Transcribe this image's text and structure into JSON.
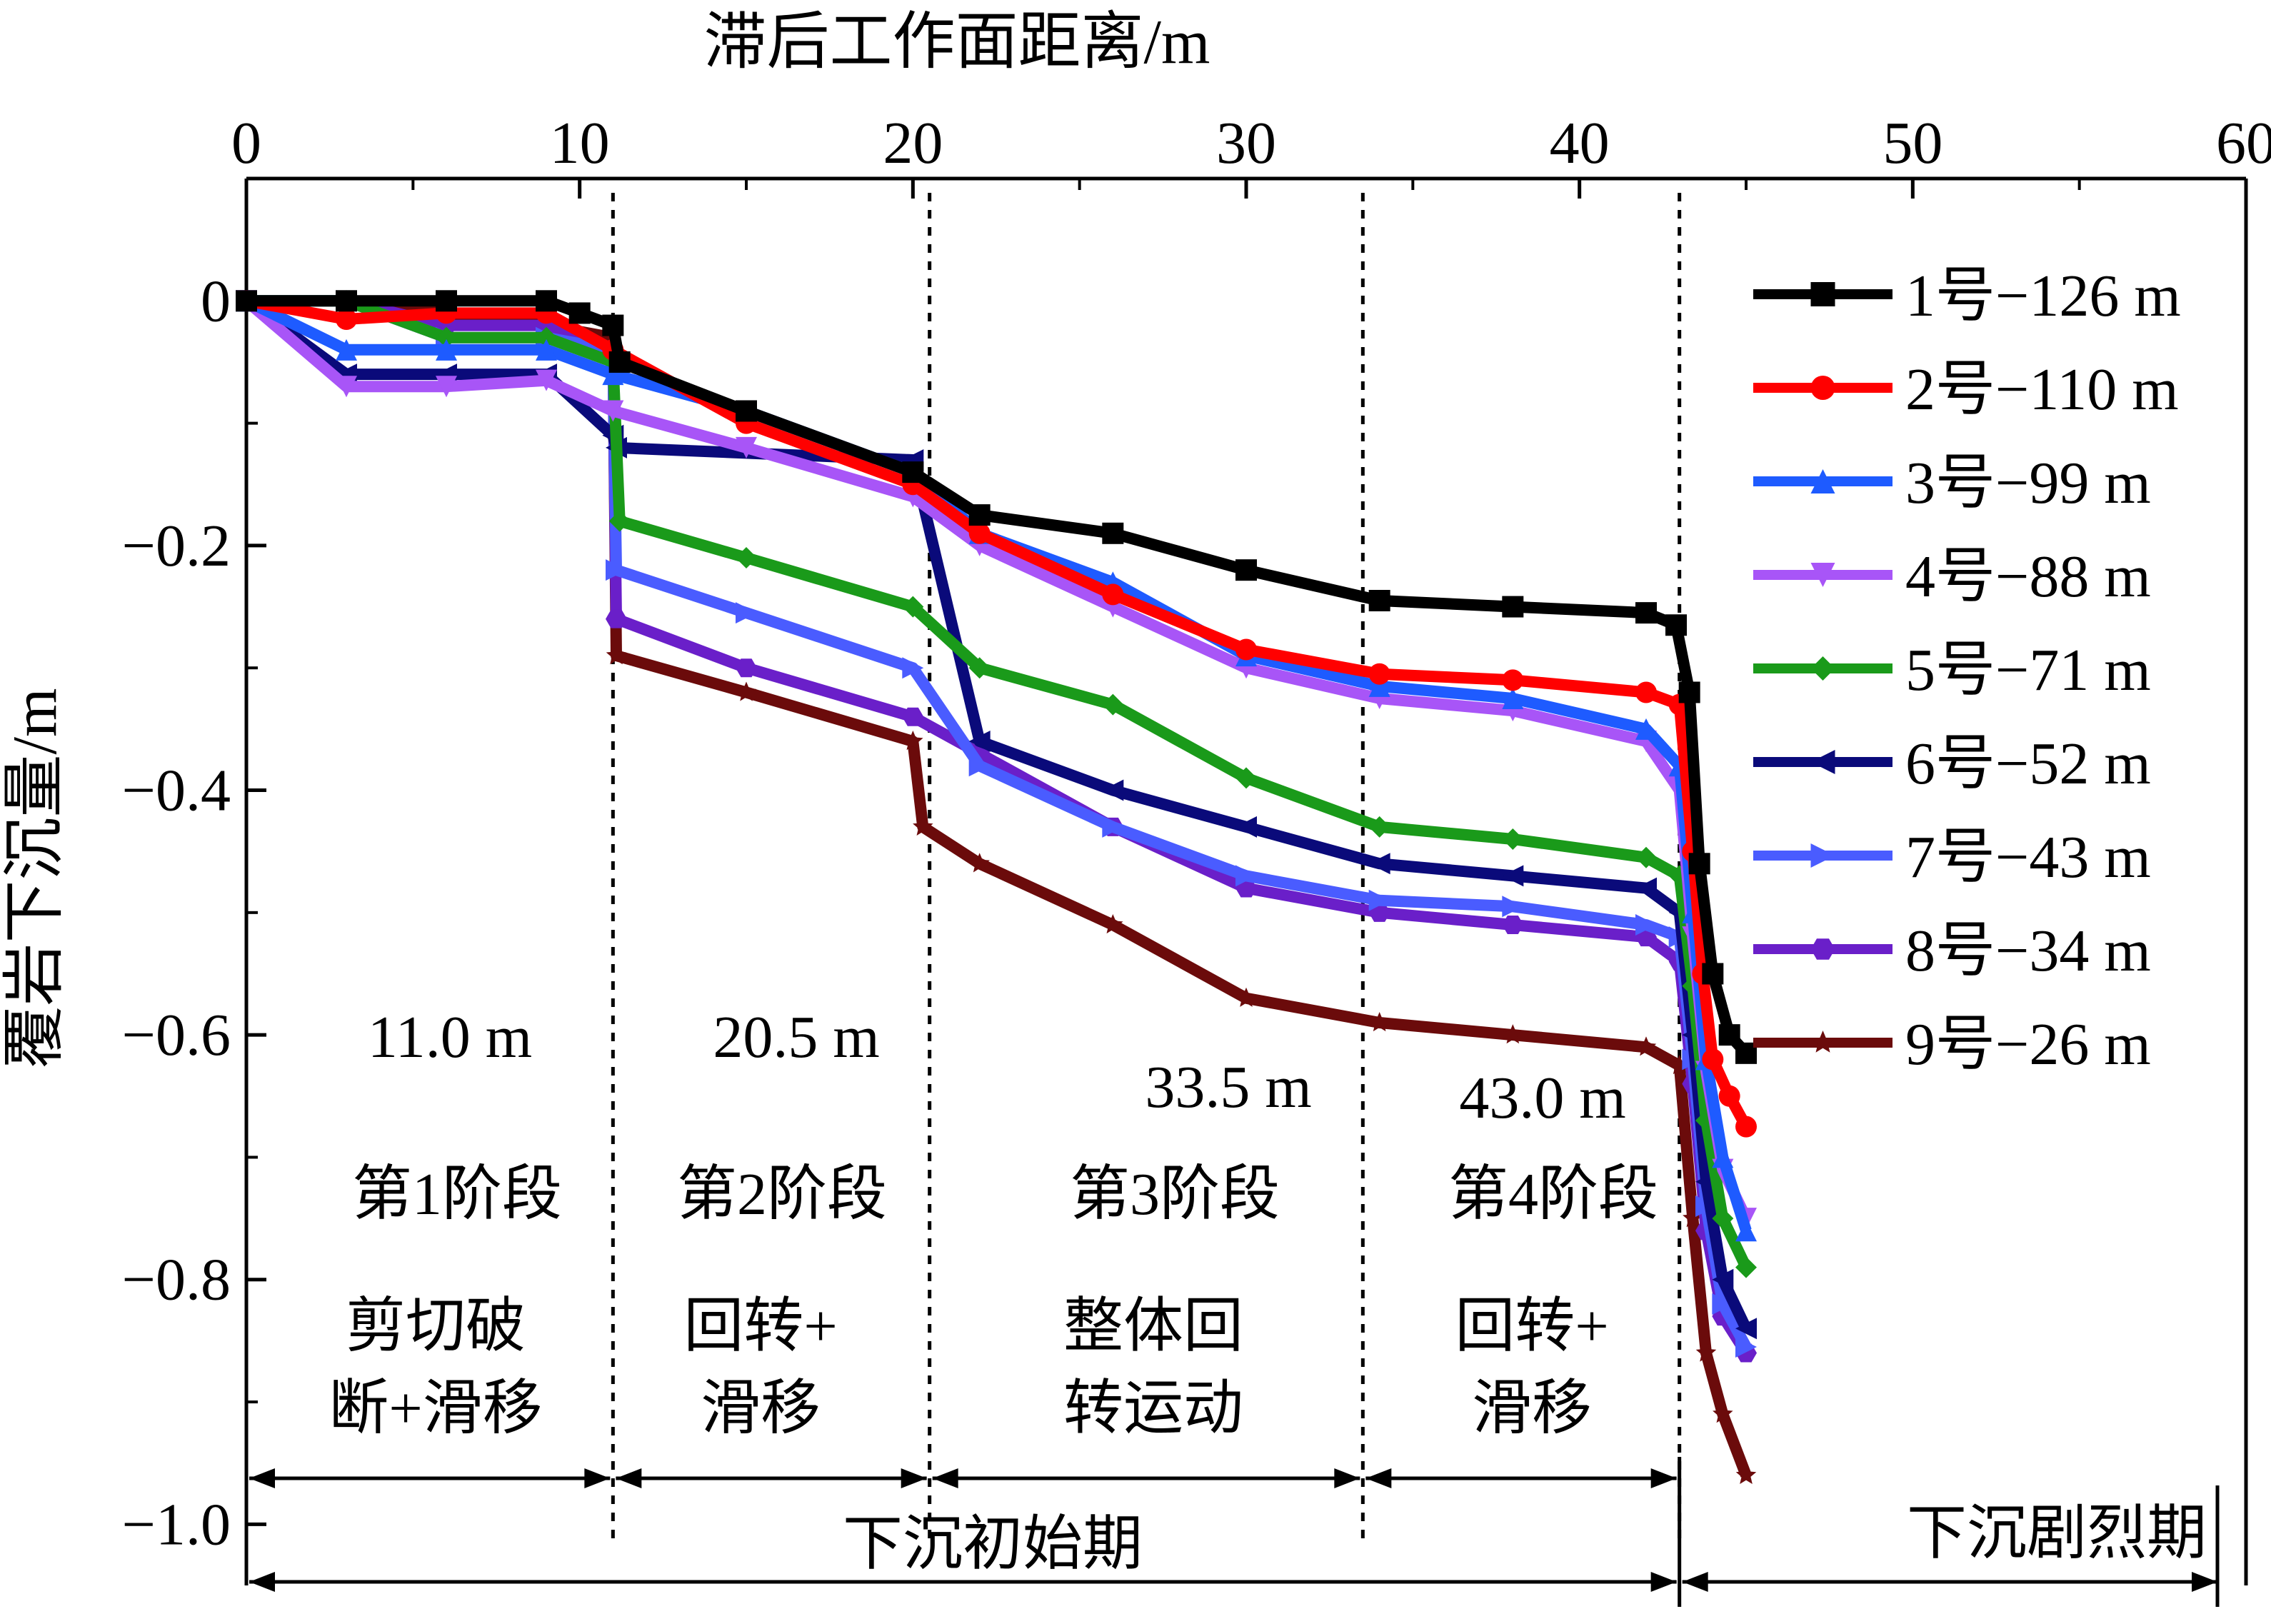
{
  "chart_data": {
    "type": "line",
    "title": "",
    "xlabel": "滞后工作面距离/m",
    "ylabel": "覆岩下沉量/m",
    "xlim": [
      0,
      60
    ],
    "ylim": [
      -1.05,
      0.1
    ],
    "xticks": [
      "0",
      "10",
      "20",
      "30",
      "40",
      "50",
      "60"
    ],
    "yticks": [
      "0",
      "−0.2",
      "−0.4",
      "−0.6",
      "−0.8",
      "−1.0"
    ],
    "legend_position": "top-right",
    "stage_boundaries": [
      11.0,
      20.5,
      33.5,
      43.0
    ],
    "boundary_labels": [
      "11.0 m",
      "20.5 m",
      "33.5 m",
      "43.0 m"
    ],
    "stages": [
      {
        "name": "第1阶段",
        "mode": [
          "剪切破",
          "断+滑移"
        ]
      },
      {
        "name": "第2阶段",
        "mode": [
          "回转+",
          "滑移"
        ]
      },
      {
        "name": "第3阶段",
        "mode": [
          "整体回",
          "转运动"
        ]
      },
      {
        "name": "第4阶段",
        "mode": [
          "回转+",
          "滑移"
        ]
      }
    ],
    "periods": [
      "下沉初始期",
      "下沉剧烈期"
    ],
    "series": [
      {
        "name": "1号−126 m",
        "color": "#000000",
        "marker": "square",
        "points": [
          [
            0,
            0
          ],
          [
            3,
            0
          ],
          [
            6,
            0
          ],
          [
            9,
            0
          ],
          [
            10,
            -0.01
          ],
          [
            11,
            -0.02
          ],
          [
            11.2,
            -0.05
          ],
          [
            15,
            -0.09
          ],
          [
            20,
            -0.14
          ],
          [
            22,
            -0.175
          ],
          [
            26,
            -0.19
          ],
          [
            30,
            -0.22
          ],
          [
            34,
            -0.245
          ],
          [
            38,
            -0.25
          ],
          [
            42,
            -0.255
          ],
          [
            42.9,
            -0.265
          ],
          [
            43.3,
            -0.32
          ],
          [
            43.6,
            -0.46
          ],
          [
            44,
            -0.55
          ],
          [
            44.5,
            -0.6
          ],
          [
            45,
            -0.615
          ]
        ]
      },
      {
        "name": "2号−110 m",
        "color": "#ff0000",
        "marker": "circle",
        "points": [
          [
            0,
            0
          ],
          [
            3,
            -0.015
          ],
          [
            6,
            -0.01
          ],
          [
            9,
            -0.01
          ],
          [
            11,
            -0.04
          ],
          [
            15,
            -0.1
          ],
          [
            20,
            -0.15
          ],
          [
            22,
            -0.19
          ],
          [
            26,
            -0.24
          ],
          [
            30,
            -0.285
          ],
          [
            34,
            -0.305
          ],
          [
            38,
            -0.31
          ],
          [
            42,
            -0.32
          ],
          [
            43,
            -0.33
          ],
          [
            43.4,
            -0.45
          ],
          [
            43.7,
            -0.55
          ],
          [
            44,
            -0.62
          ],
          [
            44.5,
            -0.65
          ],
          [
            45,
            -0.675
          ]
        ]
      },
      {
        "name": "3号−99 m",
        "color": "#1e5bff",
        "marker": "triangle-up",
        "points": [
          [
            0,
            0
          ],
          [
            3,
            -0.04
          ],
          [
            6,
            -0.04
          ],
          [
            9,
            -0.04
          ],
          [
            11,
            -0.06
          ],
          [
            15,
            -0.09
          ],
          [
            20,
            -0.14
          ],
          [
            22,
            -0.19
          ],
          [
            26,
            -0.23
          ],
          [
            30,
            -0.29
          ],
          [
            34,
            -0.315
          ],
          [
            38,
            -0.325
          ],
          [
            42,
            -0.35
          ],
          [
            43,
            -0.38
          ],
          [
            43.4,
            -0.5
          ],
          [
            43.8,
            -0.62
          ],
          [
            44.3,
            -0.7
          ],
          [
            45,
            -0.76
          ]
        ]
      },
      {
        "name": "4号−88 m",
        "color": "#a855f7",
        "marker": "triangle-down",
        "points": [
          [
            0,
            0
          ],
          [
            3,
            -0.07
          ],
          [
            6,
            -0.07
          ],
          [
            9,
            -0.065
          ],
          [
            11,
            -0.09
          ],
          [
            15,
            -0.12
          ],
          [
            20,
            -0.16
          ],
          [
            22,
            -0.2
          ],
          [
            26,
            -0.25
          ],
          [
            30,
            -0.3
          ],
          [
            34,
            -0.325
          ],
          [
            38,
            -0.335
          ],
          [
            42,
            -0.36
          ],
          [
            43,
            -0.4
          ],
          [
            43.4,
            -0.52
          ],
          [
            43.8,
            -0.63
          ],
          [
            44.3,
            -0.71
          ],
          [
            45,
            -0.75
          ]
        ]
      },
      {
        "name": "5号−71 m",
        "color": "#1a9a1a",
        "marker": "diamond",
        "points": [
          [
            0,
            0
          ],
          [
            3,
            0
          ],
          [
            6,
            -0.03
          ],
          [
            9,
            -0.03
          ],
          [
            11,
            -0.05
          ],
          [
            11.2,
            -0.18
          ],
          [
            15,
            -0.21
          ],
          [
            20,
            -0.25
          ],
          [
            22,
            -0.3
          ],
          [
            26,
            -0.33
          ],
          [
            30,
            -0.39
          ],
          [
            34,
            -0.43
          ],
          [
            38,
            -0.44
          ],
          [
            42,
            -0.455
          ],
          [
            43,
            -0.47
          ],
          [
            43.4,
            -0.56
          ],
          [
            43.8,
            -0.67
          ],
          [
            44.3,
            -0.75
          ],
          [
            45,
            -0.79
          ]
        ]
      },
      {
        "name": "6号−52 m",
        "color": "#0a0a7a",
        "marker": "triangle-left",
        "points": [
          [
            0,
            0
          ],
          [
            3,
            -0.06
          ],
          [
            6,
            -0.06
          ],
          [
            9,
            -0.06
          ],
          [
            11,
            -0.11
          ],
          [
            11.1,
            -0.12
          ],
          [
            20,
            -0.13
          ],
          [
            22,
            -0.36
          ],
          [
            26,
            -0.4
          ],
          [
            30,
            -0.43
          ],
          [
            34,
            -0.46
          ],
          [
            38,
            -0.47
          ],
          [
            42,
            -0.48
          ],
          [
            43,
            -0.5
          ],
          [
            43.4,
            -0.6
          ],
          [
            43.8,
            -0.72
          ],
          [
            44.3,
            -0.8
          ],
          [
            45,
            -0.84
          ]
        ]
      },
      {
        "name": "7号−43 m",
        "color": "#4a5cff",
        "marker": "triangle-right",
        "points": [
          [
            0,
            0
          ],
          [
            3,
            0
          ],
          [
            6,
            -0.03
          ],
          [
            9,
            -0.03
          ],
          [
            11,
            -0.04
          ],
          [
            11.1,
            -0.22
          ],
          [
            15,
            -0.255
          ],
          [
            20,
            -0.3
          ],
          [
            22,
            -0.38
          ],
          [
            26,
            -0.43
          ],
          [
            30,
            -0.47
          ],
          [
            34,
            -0.49
          ],
          [
            38,
            -0.495
          ],
          [
            42,
            -0.51
          ],
          [
            43,
            -0.52
          ],
          [
            43.4,
            -0.62
          ],
          [
            43.8,
            -0.74
          ],
          [
            44.3,
            -0.82
          ],
          [
            45,
            -0.855
          ]
        ]
      },
      {
        "name": "8号−34 m",
        "color": "#6a1fc9",
        "marker": "hexagon",
        "points": [
          [
            0,
            0
          ],
          [
            3,
            0
          ],
          [
            6,
            -0.02
          ],
          [
            9,
            -0.02
          ],
          [
            11,
            -0.04
          ],
          [
            11.1,
            -0.26
          ],
          [
            15,
            -0.3
          ],
          [
            20,
            -0.34
          ],
          [
            22,
            -0.37
          ],
          [
            26,
            -0.43
          ],
          [
            30,
            -0.48
          ],
          [
            34,
            -0.5
          ],
          [
            38,
            -0.51
          ],
          [
            42,
            -0.52
          ],
          [
            43,
            -0.54
          ],
          [
            43.4,
            -0.64
          ],
          [
            43.8,
            -0.76
          ],
          [
            44.3,
            -0.83
          ],
          [
            45,
            -0.86
          ]
        ]
      },
      {
        "name": "9号−26 m",
        "color": "#6b0b0b",
        "marker": "star",
        "points": [
          [
            0,
            0
          ],
          [
            3,
            0
          ],
          [
            6,
            -0.01
          ],
          [
            9,
            -0.02
          ],
          [
            11,
            -0.03
          ],
          [
            11.1,
            -0.29
          ],
          [
            15,
            -0.32
          ],
          [
            20,
            -0.36
          ],
          [
            20.3,
            -0.43
          ],
          [
            22,
            -0.46
          ],
          [
            26,
            -0.51
          ],
          [
            30,
            -0.57
          ],
          [
            34,
            -0.59
          ],
          [
            38,
            -0.6
          ],
          [
            42,
            -0.61
          ],
          [
            43,
            -0.625
          ],
          [
            43.4,
            -0.75
          ],
          [
            43.8,
            -0.86
          ],
          [
            44.3,
            -0.91
          ],
          [
            45,
            -0.96
          ]
        ]
      }
    ]
  }
}
